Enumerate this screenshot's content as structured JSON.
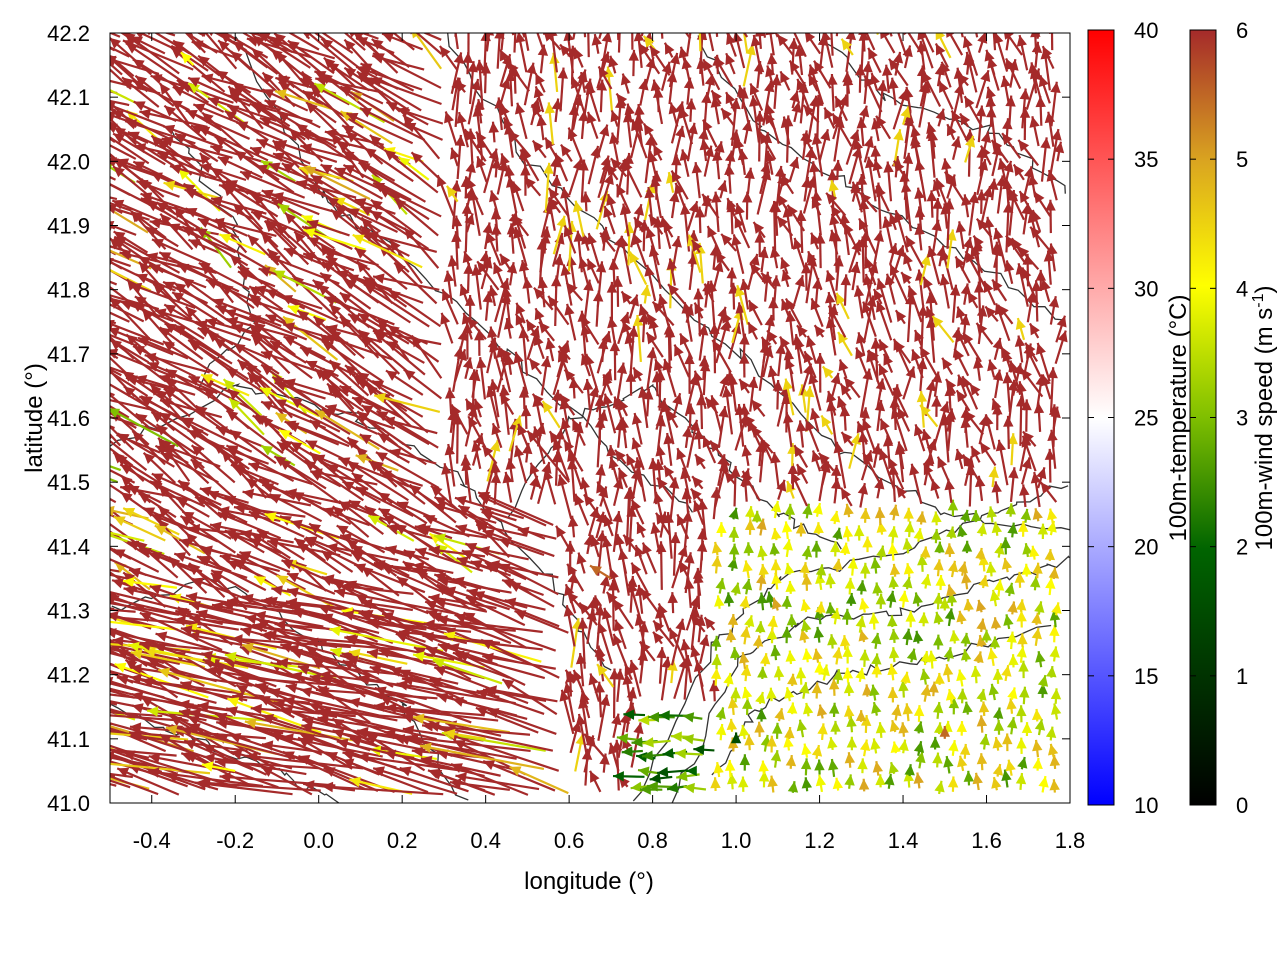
{
  "chart_data": {
    "type": "vector-field",
    "xlabel": "longitude (°)",
    "ylabel": "latitude (°)",
    "xlim": [
      -0.5,
      1.8
    ],
    "ylim": [
      41.0,
      42.2
    ],
    "x_ticks": [
      -0.4,
      -0.2,
      0.0,
      0.2,
      0.4,
      0.6,
      0.8,
      1.0,
      1.2,
      1.4,
      1.6,
      1.8
    ],
    "x_tick_labels": [
      "-0.4",
      "-0.2",
      "0.0",
      "0.2",
      "0.4",
      "0.6",
      "0.8",
      "1.0",
      "1.2",
      "1.4",
      "1.6",
      "1.8"
    ],
    "y_ticks": [
      41.0,
      41.1,
      41.2,
      41.3,
      41.4,
      41.5,
      41.6,
      41.7,
      41.8,
      41.9,
      42.0,
      42.1,
      42.2
    ],
    "y_tick_labels": [
      "41.0",
      "41.1",
      "41.2",
      "41.3",
      "41.4",
      "41.5",
      "41.6",
      "41.7",
      "41.8",
      "41.9",
      "42.0",
      "42.1",
      "42.2"
    ],
    "grid": false,
    "overlays": "terrain contour lines",
    "colorbars": [
      {
        "label": "100m-temperature (°C)",
        "range": [
          10,
          40
        ],
        "ticks": [
          10,
          15,
          20,
          25,
          30,
          35,
          40
        ],
        "tick_labels": [
          "10",
          "15",
          "20",
          "25",
          "30",
          "35",
          "40"
        ],
        "colors": [
          "#0000ff",
          "#ffffff",
          "#ff0000"
        ]
      },
      {
        "label_main": "100m-wind speed (m s",
        "label_sup": "-1",
        "label_close": ")",
        "range": [
          0,
          6
        ],
        "ticks": [
          0,
          1,
          2,
          3,
          4,
          5,
          6
        ],
        "tick_labels": [
          "0",
          "1",
          "2",
          "3",
          "4",
          "5",
          "6"
        ],
        "colors": [
          "#000000",
          "#006400",
          "#7fbf00",
          "#ffff00",
          "#daa520",
          "#a52a2a"
        ]
      }
    ],
    "wind_vectors": {
      "description_fields": [
        "lon",
        "lat",
        "dx_deg",
        "dy_deg",
        "speed_ms"
      ],
      "samples": [
        [
          -0.45,
          41.85,
          -0.05,
          0.03,
          6.0
        ],
        [
          -0.3,
          42.15,
          -0.03,
          0.02,
          4.0
        ],
        [
          0.0,
          42.1,
          -0.04,
          0.04,
          6.0
        ],
        [
          0.4,
          42.0,
          -0.05,
          0.05,
          6.0
        ],
        [
          0.8,
          41.9,
          -0.01,
          0.06,
          6.0
        ],
        [
          1.2,
          42.0,
          0.02,
          0.05,
          6.0
        ],
        [
          1.6,
          41.8,
          -0.05,
          0.06,
          6.0
        ],
        [
          0.2,
          41.6,
          -0.15,
          0.05,
          6.0
        ],
        [
          0.6,
          41.5,
          -0.1,
          0.08,
          6.0
        ],
        [
          0.4,
          41.3,
          -0.25,
          0.07,
          6.0
        ],
        [
          0.2,
          41.2,
          -0.3,
          0.02,
          6.0
        ],
        [
          1.4,
          41.5,
          -0.01,
          0.06,
          6.0
        ],
        [
          1.5,
          41.3,
          0.0,
          0.02,
          3.5
        ],
        [
          1.6,
          41.25,
          0.0,
          0.02,
          3.2
        ],
        [
          1.2,
          41.2,
          0.0,
          0.02,
          4.0
        ],
        [
          1.0,
          41.1,
          0.0,
          0.01,
          1.5
        ],
        [
          0.9,
          41.05,
          -0.02,
          0.0,
          2.0
        ],
        [
          1.1,
          41.3,
          -0.01,
          0.02,
          5.0
        ],
        [
          1.5,
          41.1,
          0.0,
          0.02,
          5.5
        ],
        [
          -0.2,
          41.05,
          -0.08,
          0.01,
          4.0
        ],
        [
          0.4,
          41.1,
          -0.1,
          0.01,
          4.5
        ],
        [
          0.7,
          41.35,
          -0.05,
          0.02,
          5.5
        ]
      ]
    }
  }
}
